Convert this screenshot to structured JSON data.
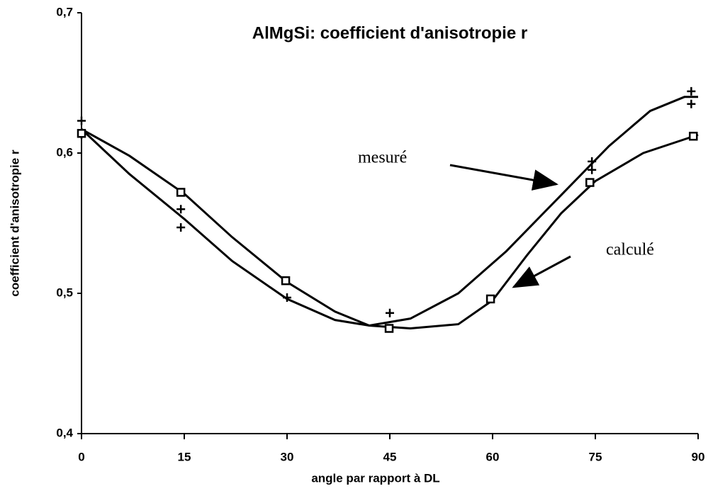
{
  "chart_data": {
    "type": "line",
    "title": "AlMgSi: coefficient d'anisotropie r",
    "x_label": "angle par rapport à DL",
    "y_label": "coefficient d'anisotropie r",
    "xlim": [
      0,
      90
    ],
    "ylim": [
      0.4,
      0.7
    ],
    "xticks": [
      0,
      15,
      30,
      45,
      60,
      75,
      90
    ],
    "yticks": [
      {
        "value": 0.4,
        "label": "0,4"
      },
      {
        "value": 0.5,
        "label": "0,5"
      },
      {
        "value": 0.6,
        "label": "0,6"
      },
      {
        "value": 0.7,
        "label": "0,7"
      }
    ],
    "grid": false,
    "color": "#000000",
    "series": [
      {
        "name": "mesuré",
        "marker": "plus",
        "x": [
          0,
          0,
          14.5,
          14.5,
          30,
          45,
          74.5,
          74.5,
          89,
          89
        ],
        "values": [
          0.623,
          0.613,
          0.56,
          0.547,
          0.497,
          0.486,
          0.594,
          0.588,
          0.644,
          0.635
        ],
        "curve_x": [
          0,
          7,
          15,
          22,
          30,
          37,
          42,
          48,
          55,
          62,
          70,
          77,
          83,
          88,
          90
        ],
        "curve_values": [
          0.617,
          0.585,
          0.553,
          0.523,
          0.496,
          0.481,
          0.477,
          0.482,
          0.5,
          0.53,
          0.57,
          0.605,
          0.63,
          0.64,
          0.64
        ]
      },
      {
        "name": "calculé",
        "marker": "square",
        "x": [
          0,
          14.5,
          29.8,
          44.9,
          59.7,
          74.2,
          89.3
        ],
        "values": [
          0.614,
          0.572,
          0.509,
          0.475,
          0.496,
          0.579,
          0.612
        ],
        "curve_x": [
          0,
          7,
          15,
          22,
          30,
          37,
          42,
          48,
          55,
          60,
          65,
          70,
          75,
          82,
          90
        ],
        "curve_values": [
          0.617,
          0.598,
          0.571,
          0.54,
          0.508,
          0.487,
          0.477,
          0.475,
          0.478,
          0.495,
          0.527,
          0.557,
          0.58,
          0.6,
          0.613
        ]
      }
    ]
  }
}
